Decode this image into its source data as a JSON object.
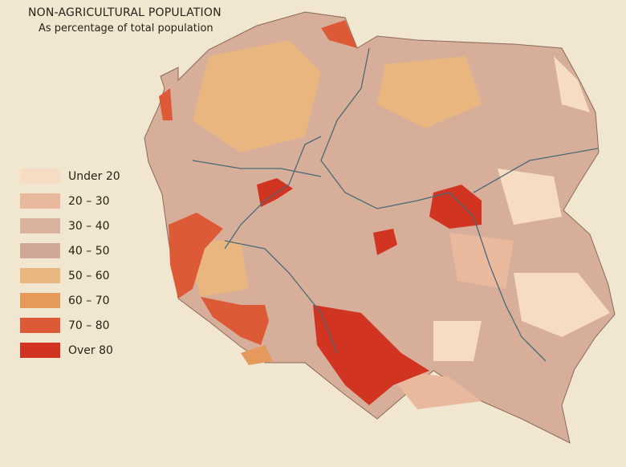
{
  "title": "NON-AGRICULTURAL POPULATION",
  "subtitle": "As percentage of total population",
  "legend": [
    {
      "label": "Under 20",
      "color": "#f5dcc2"
    },
    {
      "label": "20 – 30",
      "color": "#e8b99c"
    },
    {
      "label": "30 – 40",
      "color": "#d9b3a0"
    },
    {
      "label": "40 – 50",
      "color": "#cfa898"
    },
    {
      "label": "50 – 60",
      "color": "#e8b67e"
    },
    {
      "label": "60 – 70",
      "color": "#e39a5a"
    },
    {
      "label": "70 – 80",
      "color": "#dc5a36"
    },
    {
      "label": "Over 80",
      "color": "#d23422"
    }
  ]
}
